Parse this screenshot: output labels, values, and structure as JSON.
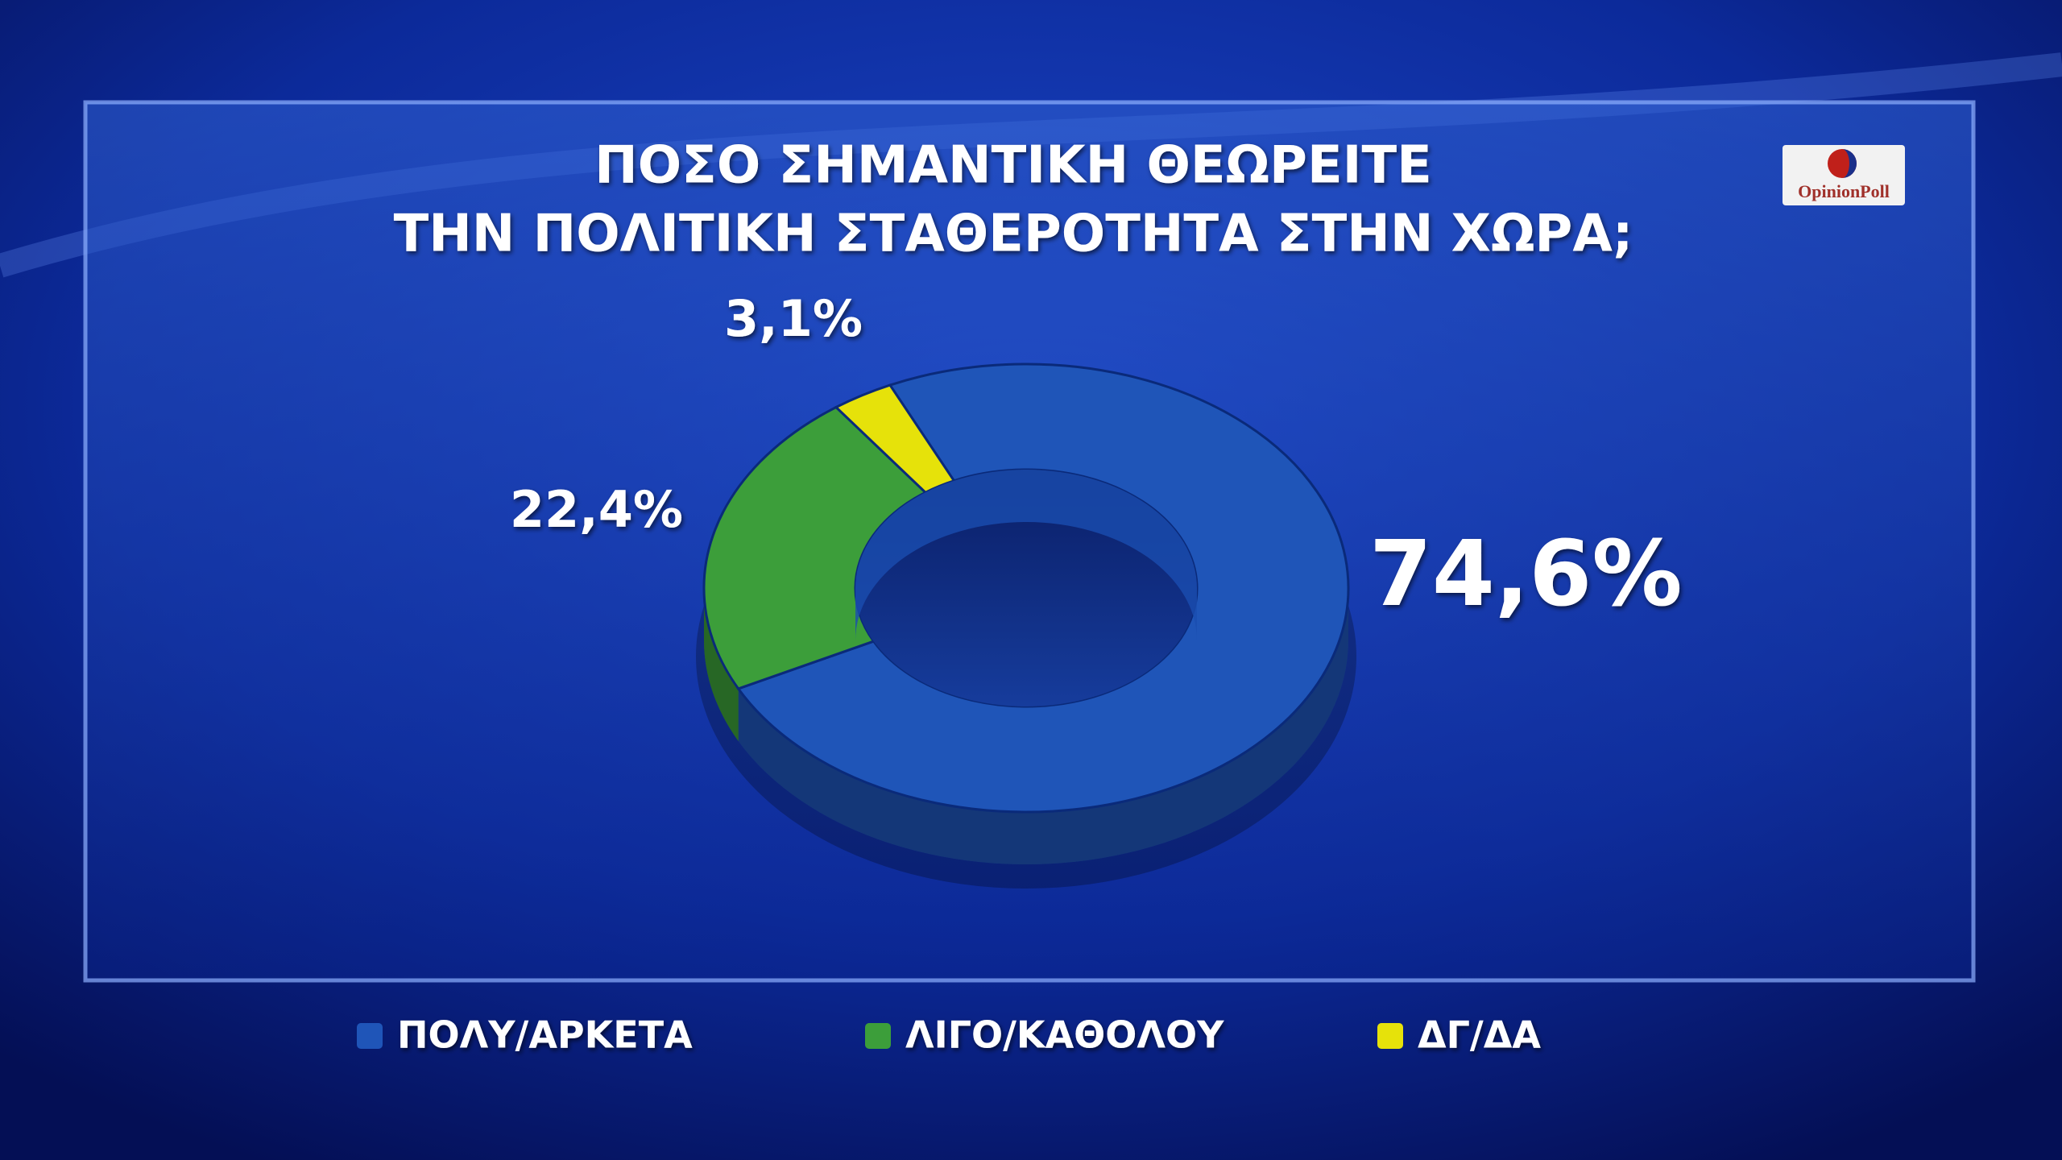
{
  "chart_data": {
    "type": "pie",
    "donut": true,
    "title": [
      "ΠΟΣΟ ΣΗΜΑΝΤΙΚΗ ΘΕΩΡΕΙΤΕ",
      "ΤΗΝ ΠΟΛΙΤΙΚΗ ΣΤΑΘΕΡΟΤΗΤΑ ΣΤΗΝ ΧΩΡΑ;"
    ],
    "logo": "OpinionPoll",
    "categories": [
      "ΠΟΛΥ/ΑΡΚΕΤΑ",
      "ΛΙΓΟ/ΚΑΘΟΛΟΥ",
      "ΔΓ/ΔΑ"
    ],
    "values": [
      74.6,
      22.4,
      3.1
    ],
    "value_labels": [
      "74,6%",
      "22,4%",
      "3,1%"
    ],
    "colors": [
      "#1f55b8",
      "#3c9e3a",
      "#e6e20a"
    ]
  }
}
